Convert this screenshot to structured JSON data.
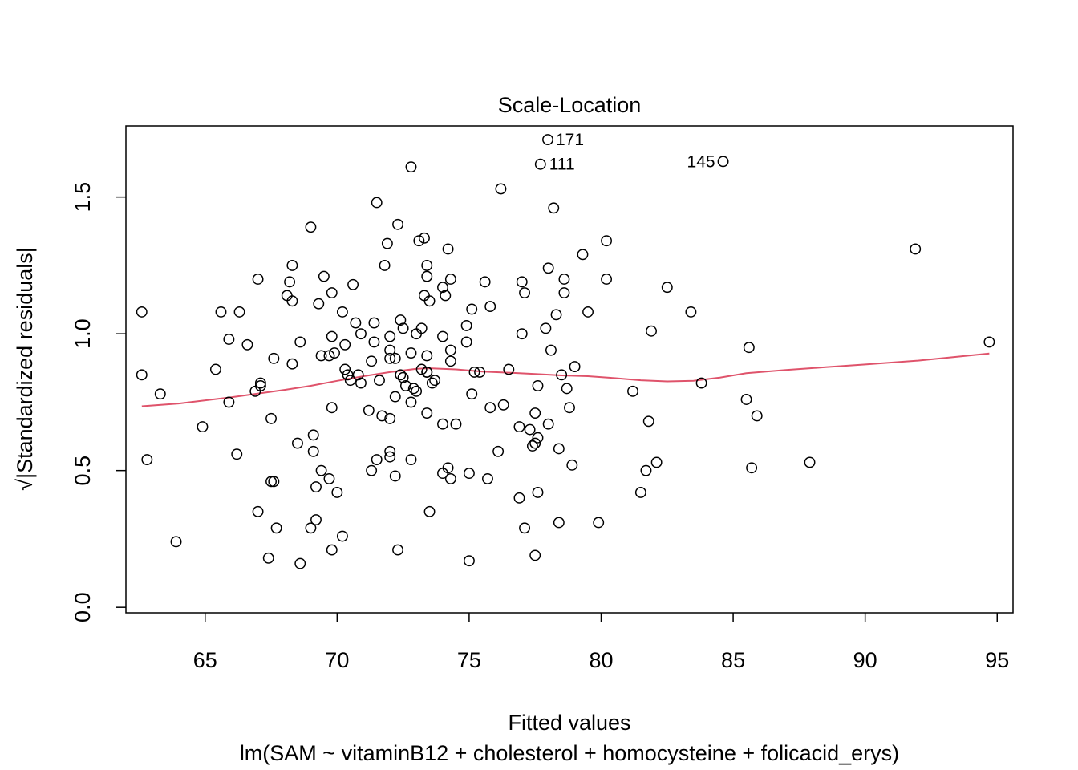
{
  "chart_data": {
    "type": "scatter",
    "title": "Scale-Location",
    "xlabel": "Fitted values",
    "subtitle": "lm(SAM ~ vitaminB12 + cholesterol + homocysteine + folicacid_erys)",
    "ylabel": "√|Standardized residuals|",
    "xlim": [
      62,
      95.6
    ],
    "ylim": [
      -0.02,
      1.76
    ],
    "xticks": [
      65,
      70,
      75,
      80,
      85,
      90,
      95
    ],
    "yticks": [
      0.0,
      0.5,
      1.0,
      1.5
    ],
    "ytick_labels": [
      "0.0",
      "0.5",
      "1.0",
      "1.5"
    ],
    "grid": false,
    "legend": "none",
    "colors": {
      "points": "#000000",
      "smoother": "#DF536B",
      "frame": "#000000"
    },
    "labeled_points": [
      {
        "label": "171",
        "x": 77.98,
        "y": 1.71,
        "side": "right"
      },
      {
        "label": "111",
        "x": 77.73,
        "y": 1.62,
        "side": "right"
      },
      {
        "label": "145",
        "x": 84.62,
        "y": 1.63,
        "side": "left"
      }
    ],
    "points": [
      [
        62.6,
        1.08
      ],
      [
        62.6,
        0.85
      ],
      [
        62.8,
        0.54
      ],
      [
        63.3,
        0.78
      ],
      [
        63.9,
        0.24
      ],
      [
        64.9,
        0.66
      ],
      [
        65.4,
        0.87
      ],
      [
        65.6,
        1.08
      ],
      [
        65.9,
        0.75
      ],
      [
        65.9,
        0.98
      ],
      [
        66.2,
        0.56
      ],
      [
        66.3,
        1.08
      ],
      [
        66.6,
        0.96
      ],
      [
        66.9,
        0.79
      ],
      [
        67.0,
        0.35
      ],
      [
        67.0,
        1.2
      ],
      [
        67.1,
        0.82
      ],
      [
        67.1,
        0.81
      ],
      [
        67.4,
        0.18
      ],
      [
        67.5,
        0.69
      ],
      [
        67.5,
        0.46
      ],
      [
        67.6,
        0.91
      ],
      [
        67.6,
        0.46
      ],
      [
        67.7,
        0.29
      ],
      [
        68.1,
        1.14
      ],
      [
        68.2,
        1.19
      ],
      [
        68.3,
        1.25
      ],
      [
        68.3,
        0.89
      ],
      [
        68.3,
        1.12
      ],
      [
        68.5,
        0.6
      ],
      [
        68.6,
        0.16
      ],
      [
        68.6,
        0.97
      ],
      [
        69.0,
        1.39
      ],
      [
        69.0,
        0.29
      ],
      [
        69.1,
        0.63
      ],
      [
        69.1,
        0.57
      ],
      [
        69.2,
        0.32
      ],
      [
        69.2,
        0.44
      ],
      [
        69.3,
        1.11
      ],
      [
        69.4,
        0.92
      ],
      [
        69.4,
        0.5
      ],
      [
        69.5,
        1.21
      ],
      [
        69.7,
        0.47
      ],
      [
        69.7,
        0.92
      ],
      [
        69.8,
        1.15
      ],
      [
        69.8,
        0.73
      ],
      [
        69.8,
        0.99
      ],
      [
        69.8,
        0.21
      ],
      [
        69.9,
        0.93
      ],
      [
        70.0,
        0.42
      ],
      [
        70.2,
        1.08
      ],
      [
        70.2,
        0.26
      ],
      [
        70.3,
        0.96
      ],
      [
        70.3,
        0.87
      ],
      [
        70.4,
        0.85
      ],
      [
        70.5,
        0.83
      ],
      [
        70.6,
        1.18
      ],
      [
        70.7,
        1.04
      ],
      [
        70.8,
        0.85
      ],
      [
        70.9,
        1.0
      ],
      [
        70.9,
        0.82
      ],
      [
        71.2,
        0.72
      ],
      [
        71.3,
        0.5
      ],
      [
        71.3,
        0.9
      ],
      [
        71.4,
        0.97
      ],
      [
        71.4,
        1.04
      ],
      [
        71.5,
        0.54
      ],
      [
        71.5,
        1.48
      ],
      [
        71.6,
        0.83
      ],
      [
        71.7,
        0.7
      ],
      [
        71.8,
        1.25
      ],
      [
        71.9,
        1.33
      ],
      [
        72.0,
        0.99
      ],
      [
        72.0,
        0.94
      ],
      [
        72.0,
        0.91
      ],
      [
        72.0,
        0.69
      ],
      [
        72.0,
        0.57
      ],
      [
        72.0,
        0.55
      ],
      [
        72.2,
        0.77
      ],
      [
        72.2,
        0.48
      ],
      [
        72.2,
        0.91
      ],
      [
        72.3,
        0.21
      ],
      [
        72.3,
        1.4
      ],
      [
        72.4,
        0.85
      ],
      [
        72.4,
        1.05
      ],
      [
        72.5,
        1.02
      ],
      [
        72.5,
        0.84
      ],
      [
        72.6,
        0.81
      ],
      [
        72.8,
        0.54
      ],
      [
        72.8,
        0.75
      ],
      [
        72.8,
        0.93
      ],
      [
        72.8,
        1.61
      ],
      [
        72.9,
        0.8
      ],
      [
        73.0,
        0.79
      ],
      [
        73.0,
        1.0
      ],
      [
        73.1,
        1.34
      ],
      [
        73.2,
        1.02
      ],
      [
        73.2,
        0.87
      ],
      [
        73.3,
        1.14
      ],
      [
        73.3,
        1.35
      ],
      [
        73.4,
        1.25
      ],
      [
        73.4,
        1.21
      ],
      [
        73.4,
        0.92
      ],
      [
        73.4,
        0.86
      ],
      [
        73.4,
        0.86
      ],
      [
        73.4,
        0.71
      ],
      [
        73.5,
        1.12
      ],
      [
        73.5,
        0.35
      ],
      [
        73.6,
        0.82
      ],
      [
        73.7,
        0.83
      ],
      [
        74.0,
        1.17
      ],
      [
        74.0,
        0.99
      ],
      [
        74.0,
        0.67
      ],
      [
        74.0,
        0.49
      ],
      [
        74.1,
        1.14
      ],
      [
        74.2,
        0.51
      ],
      [
        74.2,
        1.31
      ],
      [
        74.3,
        1.2
      ],
      [
        74.3,
        0.94
      ],
      [
        74.3,
        0.9
      ],
      [
        74.3,
        0.47
      ],
      [
        74.5,
        0.67
      ],
      [
        74.9,
        1.03
      ],
      [
        74.9,
        0.97
      ],
      [
        75.0,
        0.49
      ],
      [
        75.0,
        0.17
      ],
      [
        75.1,
        0.78
      ],
      [
        75.1,
        1.09
      ],
      [
        75.2,
        0.86
      ],
      [
        75.4,
        0.86
      ],
      [
        75.6,
        1.19
      ],
      [
        75.7,
        0.47
      ],
      [
        75.8,
        0.73
      ],
      [
        75.8,
        1.1
      ],
      [
        76.1,
        0.57
      ],
      [
        76.2,
        1.53
      ],
      [
        76.3,
        0.74
      ],
      [
        76.5,
        0.87
      ],
      [
        76.9,
        0.66
      ],
      [
        76.9,
        0.4
      ],
      [
        77.0,
        1.19
      ],
      [
        77.0,
        1.0
      ],
      [
        77.1,
        1.15
      ],
      [
        77.1,
        0.29
      ],
      [
        77.3,
        0.65
      ],
      [
        77.4,
        0.59
      ],
      [
        77.5,
        0.19
      ],
      [
        77.5,
        0.6
      ],
      [
        77.5,
        0.71
      ],
      [
        77.6,
        0.62
      ],
      [
        77.6,
        0.81
      ],
      [
        77.6,
        0.42
      ],
      [
        77.7,
        1.62
      ],
      [
        77.9,
        1.02
      ],
      [
        77.98,
        1.71
      ],
      [
        78.0,
        0.67
      ],
      [
        78.0,
        1.24
      ],
      [
        78.1,
        0.94
      ],
      [
        78.2,
        1.46
      ],
      [
        78.3,
        1.07
      ],
      [
        78.4,
        0.58
      ],
      [
        78.4,
        0.31
      ],
      [
        78.5,
        0.85
      ],
      [
        78.6,
        1.15
      ],
      [
        78.6,
        1.2
      ],
      [
        78.7,
        0.8
      ],
      [
        78.8,
        0.73
      ],
      [
        78.9,
        0.52
      ],
      [
        79.0,
        0.88
      ],
      [
        79.3,
        1.29
      ],
      [
        79.5,
        1.08
      ],
      [
        79.9,
        0.31
      ],
      [
        80.2,
        1.34
      ],
      [
        80.2,
        1.2
      ],
      [
        81.2,
        0.79
      ],
      [
        81.5,
        0.42
      ],
      [
        81.7,
        0.5
      ],
      [
        81.8,
        0.68
      ],
      [
        81.9,
        1.01
      ],
      [
        82.1,
        0.53
      ],
      [
        82.5,
        1.17
      ],
      [
        83.4,
        1.08
      ],
      [
        83.8,
        0.82
      ],
      [
        84.62,
        1.63
      ],
      [
        85.5,
        0.76
      ],
      [
        85.6,
        0.95
      ],
      [
        85.7,
        0.51
      ],
      [
        85.9,
        0.7
      ],
      [
        87.9,
        0.53
      ],
      [
        91.9,
        1.31
      ],
      [
        94.7,
        0.97
      ]
    ],
    "smoother": [
      [
        62.6,
        0.735
      ],
      [
        64.0,
        0.745
      ],
      [
        66.0,
        0.768
      ],
      [
        68.0,
        0.795
      ],
      [
        69.0,
        0.81
      ],
      [
        70.0,
        0.828
      ],
      [
        71.0,
        0.845
      ],
      [
        72.0,
        0.86
      ],
      [
        73.0,
        0.872
      ],
      [
        73.5,
        0.874
      ],
      [
        74.5,
        0.87
      ],
      [
        75.5,
        0.862
      ],
      [
        76.5,
        0.858
      ],
      [
        77.5,
        0.853
      ],
      [
        78.5,
        0.848
      ],
      [
        79.5,
        0.845
      ],
      [
        80.5,
        0.838
      ],
      [
        81.5,
        0.83
      ],
      [
        82.5,
        0.826
      ],
      [
        83.5,
        0.828
      ],
      [
        84.5,
        0.84
      ],
      [
        85.5,
        0.856
      ],
      [
        87.0,
        0.868
      ],
      [
        88.5,
        0.878
      ],
      [
        90.0,
        0.888
      ],
      [
        92.0,
        0.902
      ],
      [
        94.7,
        0.928
      ]
    ]
  }
}
